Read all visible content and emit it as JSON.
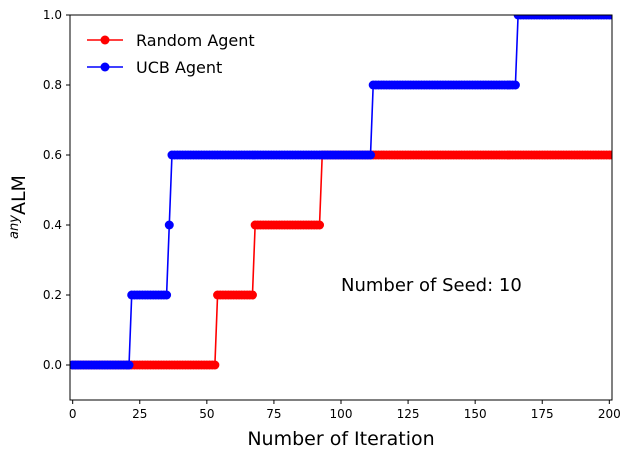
{
  "chart_data": {
    "type": "line",
    "xlabel": "Number of Iteration",
    "ylabel_sup": "any",
    "ylabel_main": "ALM",
    "xlim": [
      -1,
      201
    ],
    "ylim": [
      -0.1,
      1.0
    ],
    "xticks": [
      0,
      25,
      50,
      75,
      100,
      125,
      150,
      175,
      200
    ],
    "yticks": [
      0.0,
      0.2,
      0.4,
      0.6,
      0.8,
      1.0
    ],
    "xtick_labels": [
      "0",
      "25",
      "50",
      "75",
      "100",
      "125",
      "150",
      "175",
      "200"
    ],
    "ytick_labels": [
      "0.0",
      "0.2",
      "0.4",
      "0.6",
      "0.8",
      "1.0"
    ],
    "annotation": "Number of Seed: 10",
    "legend_position": "top-left",
    "grid": false,
    "series": [
      {
        "name": "Random Agent",
        "color": "#ff0000",
        "steps": [
          [
            0,
            0.0
          ],
          [
            54,
            0.2
          ],
          [
            68,
            0.4
          ],
          [
            93,
            0.6
          ]
        ]
      },
      {
        "name": "UCB Agent",
        "color": "#0000ff",
        "steps": [
          [
            0,
            0.0
          ],
          [
            22,
            0.2
          ],
          [
            36,
            0.4
          ],
          [
            37,
            0.6
          ],
          [
            112,
            0.8
          ],
          [
            166,
            1.0
          ]
        ]
      }
    ],
    "x_max": 201
  }
}
